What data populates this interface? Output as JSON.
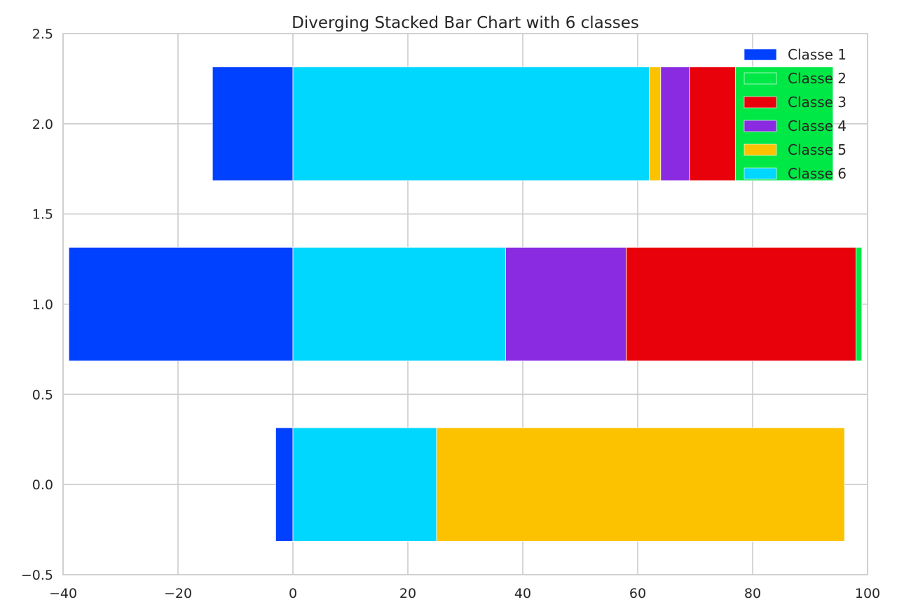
{
  "chart_data": {
    "type": "bar",
    "orientation": "horizontal",
    "stacking": "diverging",
    "title": "Diverging Stacked Bar Chart with 6 classes",
    "xlabel": "",
    "ylabel": "",
    "xlim": [
      -40,
      100
    ],
    "ylim": [
      -0.5,
      2.5
    ],
    "x_ticks": [
      -40,
      -20,
      0,
      20,
      40,
      60,
      80,
      100
    ],
    "x_tick_labels": [
      "−40",
      "−20",
      "0",
      "20",
      "40",
      "60",
      "80",
      "100"
    ],
    "y_ticks": [
      -0.5,
      0.0,
      0.5,
      1.0,
      1.5,
      2.0,
      2.5
    ],
    "y_tick_labels": [
      "−0.5",
      "0.0",
      "0.5",
      "1.0",
      "1.5",
      "2.0",
      "2.5"
    ],
    "grid": true,
    "legend_position": "top-right",
    "categories": [
      0,
      1,
      2
    ],
    "series": [
      {
        "name": "Classe 1",
        "color": "#0040ff",
        "values": [
          -3,
          -39,
          -14
        ]
      },
      {
        "name": "Classe 6",
        "color": "#00d7ff",
        "values": [
          25,
          37,
          62
        ]
      },
      {
        "name": "Classe 5",
        "color": "#fcc200",
        "values": [
          71,
          0,
          2
        ]
      },
      {
        "name": "Classe 4",
        "color": "#8a2be2",
        "values": [
          0,
          21,
          5
        ]
      },
      {
        "name": "Classe 3",
        "color": "#e8000b",
        "values": [
          0,
          40,
          8
        ]
      },
      {
        "name": "Classe 2",
        "color": "#00e846",
        "values": [
          0,
          1,
          17
        ]
      }
    ],
    "legend_order": [
      "Classe 1",
      "Classe 2",
      "Classe 3",
      "Classe 4",
      "Classe 5",
      "Classe 6"
    ]
  }
}
